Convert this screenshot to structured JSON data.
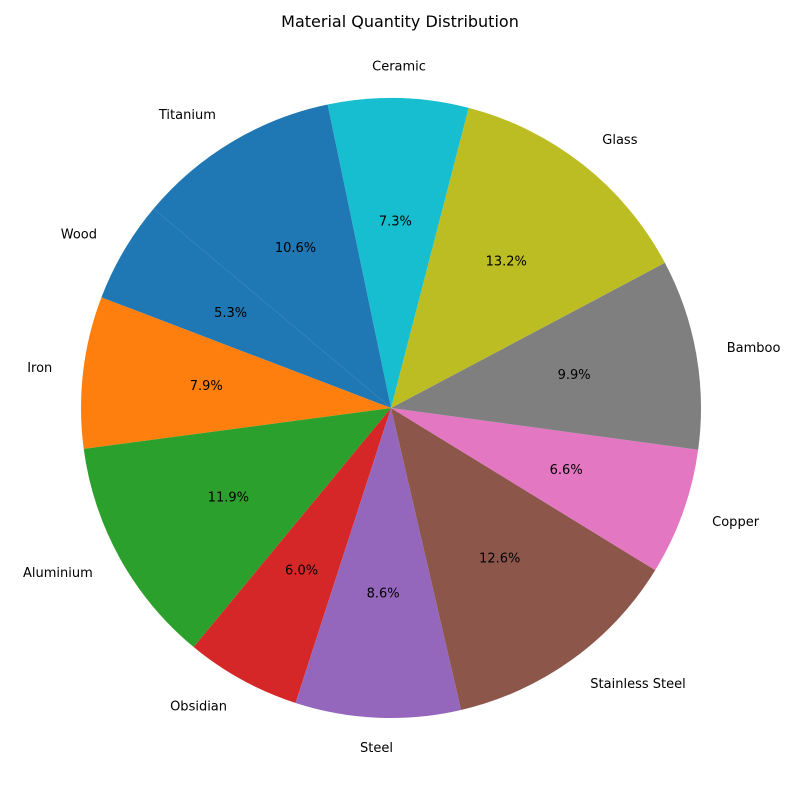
{
  "chart_data": {
    "type": "pie",
    "title": "Material Quantity Distribution",
    "start_angle_deg": 140,
    "direction": "counterclockwise",
    "slices": [
      {
        "label": "Wood",
        "percent": 5.3,
        "display": "5.3%",
        "color": "#1f77b4"
      },
      {
        "label": "Iron",
        "percent": 7.9,
        "display": "7.9%",
        "color": "#ff7f0e"
      },
      {
        "label": "Aluminium",
        "percent": 11.9,
        "display": "11.9%",
        "color": "#2ca02c"
      },
      {
        "label": "Obsidian",
        "percent": 6.0,
        "display": "6.0%",
        "color": "#d62728"
      },
      {
        "label": "Steel",
        "percent": 8.6,
        "display": "8.6%",
        "color": "#9467bd"
      },
      {
        "label": "Stainless Steel",
        "percent": 12.6,
        "display": "12.6%",
        "color": "#8c564b"
      },
      {
        "label": "Copper",
        "percent": 6.6,
        "display": "6.6%",
        "color": "#e377c2"
      },
      {
        "label": "Bamboo",
        "percent": 9.9,
        "display": "9.9%",
        "color": "#7f7f7f"
      },
      {
        "label": "Glass",
        "percent": 13.2,
        "display": "13.2%",
        "color": "#bcbd22"
      },
      {
        "label": "Ceramic",
        "percent": 7.3,
        "display": "7.3%",
        "color": "#17becf"
      },
      {
        "label": "Titanium",
        "percent": 10.6,
        "display": "10.6%",
        "color": "#1f77b4"
      }
    ]
  }
}
